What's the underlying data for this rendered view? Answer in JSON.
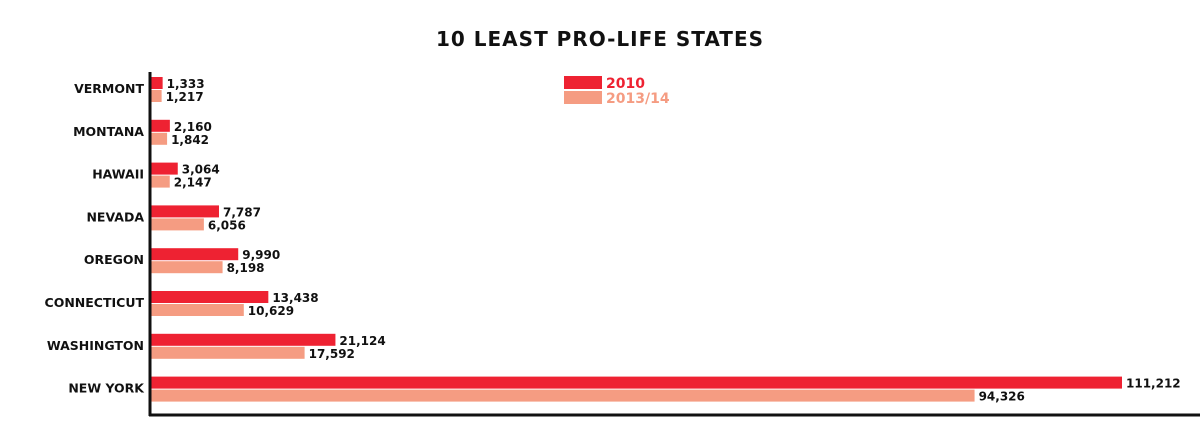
{
  "chart_data": {
    "type": "bar",
    "orientation": "horizontal",
    "title": "10 LEAST PRO-LIFE STATES",
    "categories": [
      "VERMONT",
      "MONTANA",
      "HAWAII",
      "NEVADA",
      "OREGON",
      "CONNECTICUT",
      "WASHINGTON",
      "NEW YORK"
    ],
    "series": [
      {
        "name": "2010",
        "color": "#ee2232",
        "values": [
          1333,
          2160,
          3064,
          7787,
          9990,
          13438,
          21124,
          111212
        ],
        "labels": [
          "1,333",
          "2,160",
          "3,064",
          "7,787",
          "9,990",
          "13,438",
          "21,124",
          "111,212"
        ]
      },
      {
        "name": "2013/14",
        "color": "#f59c82",
        "values": [
          1217,
          1842,
          2147,
          6056,
          8198,
          10629,
          17592,
          94326
        ],
        "labels": [
          "1,217",
          "1,842",
          "2,147",
          "6,056",
          "8,198",
          "10,629",
          "17,592",
          "94,326"
        ]
      }
    ],
    "xlim": [
      0,
      111212
    ],
    "grid": false,
    "legend_position": "top-center",
    "axis_color": "#111111"
  }
}
